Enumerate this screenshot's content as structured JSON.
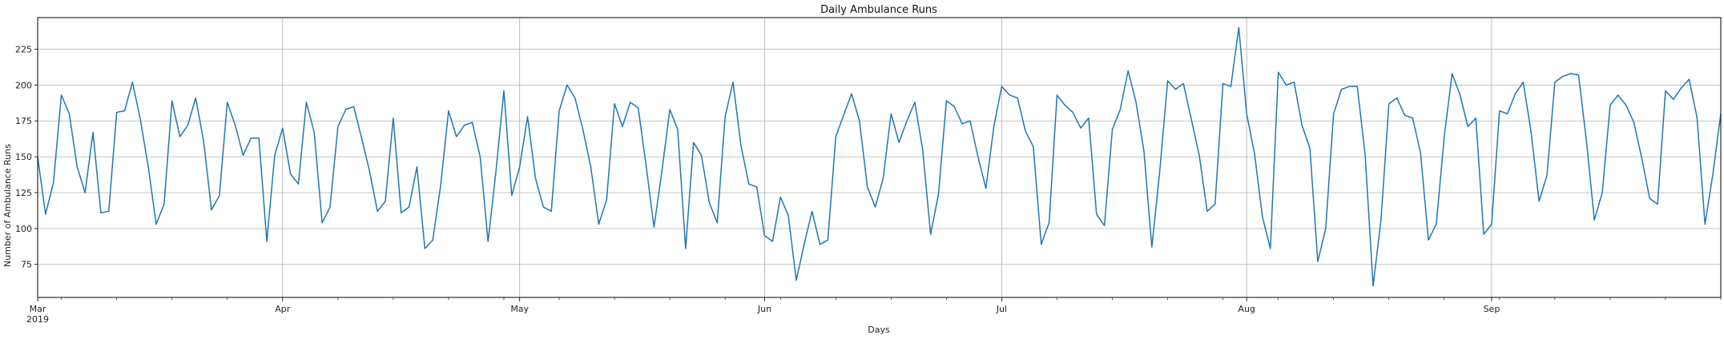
{
  "chart_data": {
    "type": "line",
    "title": "Daily Ambulance Runs",
    "xlabel": "Days",
    "ylabel": "Number of Ambulance Runs",
    "grid": true,
    "x_start": "2019-03-01",
    "x_end": "2019-09-30",
    "xlim": [
      "2019-03-01",
      "2019-09-30"
    ],
    "ylim": [
      52,
      247
    ],
    "y_ticks": [
      75,
      100,
      125,
      150,
      175,
      200,
      225
    ],
    "x_major_ticks": [
      {
        "date": "2019-03-01",
        "label": "Mar",
        "sublabel": "2019"
      },
      {
        "date": "2019-04-01",
        "label": "Apr",
        "sublabel": ""
      },
      {
        "date": "2019-05-01",
        "label": "May",
        "sublabel": ""
      },
      {
        "date": "2019-06-01",
        "label": "Jun",
        "sublabel": ""
      },
      {
        "date": "2019-07-01",
        "label": "Jul",
        "sublabel": ""
      },
      {
        "date": "2019-08-01",
        "label": "Aug",
        "sublabel": ""
      },
      {
        "date": "2019-09-01",
        "label": "Sep",
        "sublabel": ""
      }
    ],
    "series": [
      {
        "color": "#1f77b4",
        "values": [
          150,
          110,
          132,
          193,
          180,
          143,
          125,
          167,
          111,
          112,
          181,
          182,
          202,
          176,
          143,
          103,
          117,
          189,
          164,
          172,
          191,
          161,
          113,
          123,
          188,
          172,
          151,
          163,
          163,
          91,
          151,
          170,
          138,
          131,
          188,
          167,
          104,
          115,
          171,
          183,
          185,
          163,
          140,
          112,
          119,
          177,
          111,
          115,
          143,
          86,
          92,
          130,
          182,
          164,
          172,
          174,
          150,
          91,
          140,
          196,
          123,
          143,
          178,
          135,
          115,
          112,
          182,
          200,
          191,
          169,
          143,
          103,
          120,
          187,
          171,
          188,
          184,
          144,
          101,
          140,
          183,
          169,
          86,
          160,
          151,
          118,
          104,
          178,
          202,
          158,
          131,
          129,
          95,
          91,
          122,
          109,
          64,
          89,
          112,
          89,
          92,
          164,
          179,
          194,
          175,
          129,
          115,
          135,
          180,
          160,
          175,
          188,
          155,
          96,
          124,
          189,
          185,
          173,
          175,
          150,
          128,
          171,
          199,
          193,
          191,
          168,
          157,
          89,
          104,
          193,
          186,
          181,
          170,
          177,
          110,
          102,
          169,
          183,
          210,
          188,
          154,
          87,
          140,
          203,
          197,
          201,
          176,
          151,
          112,
          117,
          201,
          199,
          240,
          180,
          152,
          108,
          86,
          209,
          200,
          202,
          172,
          156,
          77,
          100,
          180,
          197,
          199,
          199,
          151,
          60,
          106,
          187,
          191,
          179,
          177,
          153,
          92,
          103,
          164,
          208,
          193,
          171,
          177,
          96,
          103,
          182,
          180,
          194,
          202,
          167,
          119,
          137,
          202,
          206,
          208,
          207,
          161,
          106,
          125,
          186,
          193,
          186,
          174,
          149,
          121,
          117,
          196,
          190,
          198,
          204,
          177,
          103,
          138,
          180
        ]
      }
    ]
  }
}
